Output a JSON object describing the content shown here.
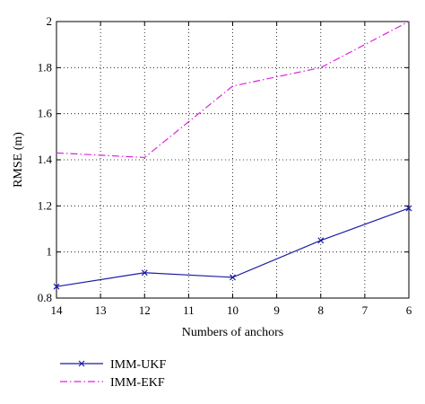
{
  "chart_data": {
    "type": "line",
    "xlabel": "Numbers of anchors",
    "ylabel": "RMSE (m)",
    "x": [
      14,
      12,
      10,
      8,
      6
    ],
    "x_ticks": [
      14,
      13,
      12,
      11,
      10,
      9,
      8,
      7,
      6
    ],
    "x_reversed": true,
    "xlim": [
      14,
      6
    ],
    "ylim": [
      0.8,
      2.0
    ],
    "y_ticks": [
      0.8,
      1,
      1.2,
      1.4,
      1.6,
      1.8,
      2
    ],
    "y_tick_labels": [
      "0.8",
      "1",
      "1.2",
      "1.4",
      "1.6",
      "1.8",
      "2"
    ],
    "grid": true,
    "legend_position": "below-left",
    "series": [
      {
        "name": "IMM-UKF",
        "values": [
          0.85,
          0.91,
          0.89,
          1.05,
          1.19
        ],
        "color": "#1c1ca8",
        "line_style": "solid",
        "marker": "x"
      },
      {
        "name": "IMM-EKF",
        "values": [
          1.43,
          1.41,
          1.72,
          1.8,
          2.0
        ],
        "color": "#e020e0",
        "line_style": "dash-dot",
        "marker": "none"
      }
    ]
  }
}
